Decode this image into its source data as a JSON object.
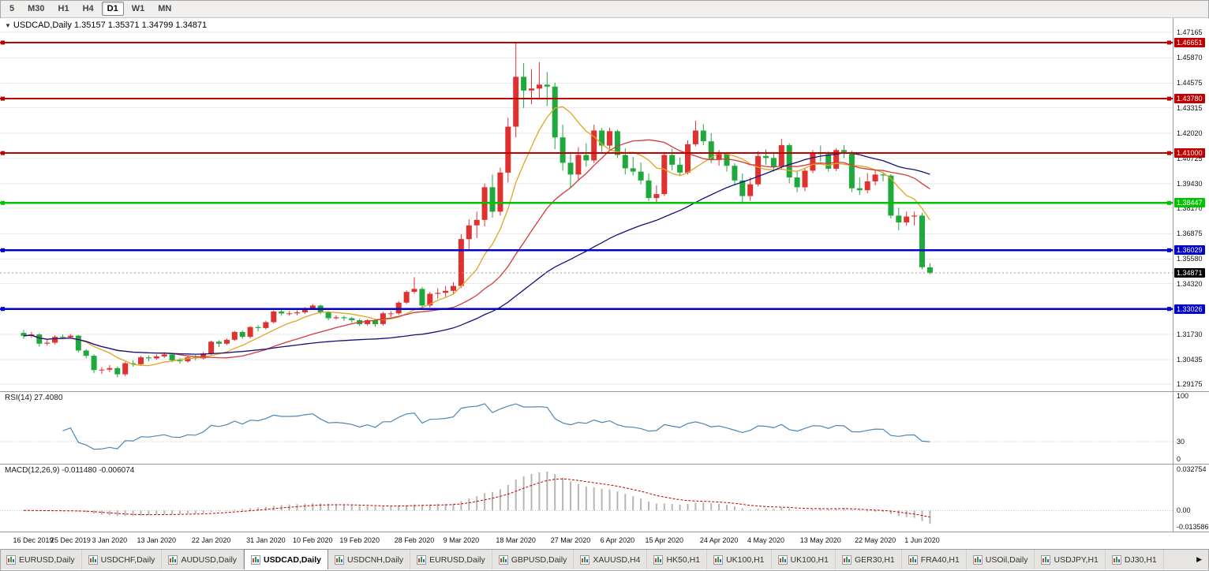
{
  "toolbar": {
    "periods": [
      {
        "label": "5",
        "active": false
      },
      {
        "label": "M30",
        "active": false
      },
      {
        "label": "H1",
        "active": false
      },
      {
        "label": "H4",
        "active": false
      },
      {
        "label": "D1",
        "active": true
      },
      {
        "label": "W1",
        "active": false
      },
      {
        "label": "MN",
        "active": false
      }
    ]
  },
  "chart": {
    "collapse_icon": "▼",
    "symbol_title": "USDCAD,Daily",
    "ohlc_text": "1.35157 1.35371 1.34799 1.34871",
    "y_axis": {
      "max": 1.479,
      "min": 1.2882,
      "ticks": [
        "1.47165",
        "1.45870",
        "1.44575",
        "1.43315",
        "1.42020",
        "1.40725",
        "1.39430",
        "1.38170",
        "1.36875",
        "1.35580",
        "1.34320",
        "1.33025",
        "1.31730",
        "1.30435",
        "1.29175"
      ]
    },
    "levels": [
      {
        "price": 1.46651,
        "label": "1.46651",
        "color": "red"
      },
      {
        "price": 1.4378,
        "label": "1.43780",
        "color": "red"
      },
      {
        "price": 1.41,
        "label": "1.41000",
        "color": "red"
      },
      {
        "price": 1.38447,
        "label": "1.38447",
        "color": "green"
      },
      {
        "price": 1.36029,
        "label": "1.36029",
        "color": "blue"
      },
      {
        "price": 1.33026,
        "label": "1.33026",
        "color": "blue"
      }
    ],
    "current_price": {
      "value": 1.34871,
      "label": "1.34871"
    },
    "colors": {
      "up": "#e03131",
      "down": "#1fa93c",
      "red": "#c00000",
      "green": "#00c400",
      "blue": "#0000cc",
      "ma_fast": "#dfa422",
      "ma_mid": "#d23b3b",
      "ma_slow": "#12127e",
      "grid": "#e9e9e9",
      "current": "#999999",
      "black_badge": "#000000"
    },
    "ma_periods": {
      "fast": 8,
      "mid": 20,
      "slow": 45
    },
    "date_ticks": [
      {
        "label": "16 Dec 2019",
        "i": 1
      },
      {
        "label": "25 Dec 2019",
        "i": 7
      },
      {
        "label": "3 Jan 2020",
        "i": 12
      },
      {
        "label": "13 Jan 2020",
        "i": 18
      },
      {
        "label": "22 Jan 2020",
        "i": 25
      },
      {
        "label": "31 Jan 2020",
        "i": 32
      },
      {
        "label": "10 Feb 2020",
        "i": 38
      },
      {
        "label": "19 Feb 2020",
        "i": 44
      },
      {
        "label": "28 Feb 2020",
        "i": 51
      },
      {
        "label": "9 Mar 2020",
        "i": 57
      },
      {
        "label": "18 Mar 2020",
        "i": 64
      },
      {
        "label": "27 Mar 2020",
        "i": 71
      },
      {
        "label": "6 Apr 2020",
        "i": 77
      },
      {
        "label": "15 Apr 2020",
        "i": 83
      },
      {
        "label": "24 Apr 2020",
        "i": 90
      },
      {
        "label": "4 May 2020",
        "i": 96
      },
      {
        "label": "13 May 2020",
        "i": 103
      },
      {
        "label": "22 May 2020",
        "i": 110
      },
      {
        "label": "1 Jun 2020",
        "i": 116
      }
    ],
    "candles": [
      [
        1.318,
        1.3195,
        1.315,
        1.3165
      ],
      [
        1.3165,
        1.3185,
        1.3155,
        1.3172
      ],
      [
        1.3172,
        1.3178,
        1.311,
        1.3125
      ],
      [
        1.3125,
        1.3145,
        1.3115,
        1.313
      ],
      [
        1.313,
        1.3168,
        1.3122,
        1.316
      ],
      [
        1.316,
        1.3172,
        1.3148,
        1.3158
      ],
      [
        1.3158,
        1.3175,
        1.315,
        1.3166
      ],
      [
        1.3166,
        1.317,
        1.308,
        1.309
      ],
      [
        1.309,
        1.3098,
        1.305,
        1.3063
      ],
      [
        1.3063,
        1.307,
        1.2975,
        1.299
      ],
      [
        1.299,
        1.3005,
        1.297,
        1.2992
      ],
      [
        1.2992,
        1.3015,
        1.298,
        1.3
      ],
      [
        1.3,
        1.3008,
        1.2952,
        1.2968
      ],
      [
        1.2968,
        1.3032,
        1.296,
        1.3025
      ],
      [
        1.3025,
        1.304,
        1.3008,
        1.302
      ],
      [
        1.302,
        1.3062,
        1.3012,
        1.3055
      ],
      [
        1.3055,
        1.3065,
        1.3035,
        1.305
      ],
      [
        1.305,
        1.307,
        1.3042,
        1.306
      ],
      [
        1.306,
        1.3082,
        1.3052,
        1.307
      ],
      [
        1.307,
        1.3078,
        1.303,
        1.304
      ],
      [
        1.304,
        1.3052,
        1.3022,
        1.3035
      ],
      [
        1.3035,
        1.3062,
        1.3028,
        1.3055
      ],
      [
        1.3055,
        1.3068,
        1.304,
        1.305
      ],
      [
        1.305,
        1.3082,
        1.3044,
        1.3075
      ],
      [
        1.3075,
        1.314,
        1.3068,
        1.3135
      ],
      [
        1.3135,
        1.3142,
        1.3108,
        1.3125
      ],
      [
        1.3125,
        1.3152,
        1.3118,
        1.3145
      ],
      [
        1.3145,
        1.319,
        1.3138,
        1.3185
      ],
      [
        1.3185,
        1.3192,
        1.315,
        1.316
      ],
      [
        1.316,
        1.3215,
        1.3152,
        1.321
      ],
      [
        1.321,
        1.322,
        1.3188,
        1.3205
      ],
      [
        1.3205,
        1.3242,
        1.3198,
        1.3235
      ],
      [
        1.3235,
        1.3295,
        1.3228,
        1.329
      ],
      [
        1.329,
        1.3298,
        1.3268,
        1.328
      ],
      [
        1.328,
        1.3292,
        1.3268,
        1.328
      ],
      [
        1.328,
        1.3295,
        1.327,
        1.3285
      ],
      [
        1.3285,
        1.3312,
        1.3278,
        1.3305
      ],
      [
        1.3305,
        1.3328,
        1.3298,
        1.332
      ],
      [
        1.332,
        1.3325,
        1.3275,
        1.3285
      ],
      [
        1.3285,
        1.3292,
        1.3245,
        1.3255
      ],
      [
        1.3255,
        1.327,
        1.3248,
        1.326
      ],
      [
        1.326,
        1.3268,
        1.3242,
        1.3255
      ],
      [
        1.3255,
        1.3262,
        1.3232,
        1.3245
      ],
      [
        1.3245,
        1.3252,
        1.3215,
        1.3225
      ],
      [
        1.3225,
        1.325,
        1.3218,
        1.3245
      ],
      [
        1.3245,
        1.3252,
        1.3212,
        1.3225
      ],
      [
        1.3225,
        1.3288,
        1.3218,
        1.328
      ],
      [
        1.328,
        1.3292,
        1.3262,
        1.328
      ],
      [
        1.328,
        1.3342,
        1.3272,
        1.3335
      ],
      [
        1.3335,
        1.3398,
        1.3328,
        1.339
      ],
      [
        1.339,
        1.3465,
        1.338,
        1.3405
      ],
      [
        1.3405,
        1.3415,
        1.3305,
        1.332
      ],
      [
        1.332,
        1.339,
        1.331,
        1.338
      ],
      [
        1.338,
        1.3408,
        1.3355,
        1.3385
      ],
      [
        1.3385,
        1.342,
        1.3365,
        1.3395
      ],
      [
        1.3395,
        1.344,
        1.338,
        1.342
      ],
      [
        1.342,
        1.3685,
        1.341,
        1.366
      ],
      [
        1.366,
        1.376,
        1.36,
        1.373
      ],
      [
        1.373,
        1.38,
        1.3665,
        1.3758
      ],
      [
        1.3758,
        1.3945,
        1.3725,
        1.3925
      ],
      [
        1.3925,
        1.399,
        1.377,
        1.38
      ],
      [
        1.38,
        1.4025,
        1.378,
        1.4
      ],
      [
        1.4,
        1.428,
        1.395,
        1.4235
      ],
      [
        1.4235,
        1.4668,
        1.418,
        1.449
      ],
      [
        1.449,
        1.456,
        1.433,
        1.442
      ],
      [
        1.442,
        1.453,
        1.435,
        1.443
      ],
      [
        1.443,
        1.4565,
        1.438,
        1.445
      ],
      [
        1.445,
        1.4515,
        1.434,
        1.444
      ],
      [
        1.444,
        1.446,
        1.412,
        1.418
      ],
      [
        1.418,
        1.4245,
        1.401,
        1.405
      ],
      [
        1.405,
        1.4105,
        1.392,
        1.399
      ],
      [
        1.399,
        1.413,
        1.396,
        1.409
      ],
      [
        1.409,
        1.415,
        1.403,
        1.4062
      ],
      [
        1.4062,
        1.4245,
        1.4048,
        1.4215
      ],
      [
        1.4215,
        1.4228,
        1.4105,
        1.4138
      ],
      [
        1.4138,
        1.423,
        1.4122,
        1.4212
      ],
      [
        1.4212,
        1.422,
        1.4075,
        1.409
      ],
      [
        1.409,
        1.4125,
        1.399,
        1.4022
      ],
      [
        1.4022,
        1.408,
        1.3985,
        1.4005
      ],
      [
        1.4005,
        1.4052,
        1.394,
        1.396
      ],
      [
        1.396,
        1.3995,
        1.3855,
        1.387
      ],
      [
        1.387,
        1.3935,
        1.385,
        1.389
      ],
      [
        1.389,
        1.4105,
        1.388,
        1.409
      ],
      [
        1.409,
        1.4122,
        1.4012,
        1.404
      ],
      [
        1.404,
        1.4078,
        1.3985,
        1.4
      ],
      [
        1.4,
        1.4165,
        1.399,
        1.4145
      ],
      [
        1.4145,
        1.4265,
        1.4135,
        1.4215
      ],
      [
        1.4215,
        1.4248,
        1.414,
        1.416
      ],
      [
        1.416,
        1.4202,
        1.4048,
        1.4065
      ],
      [
        1.4065,
        1.4115,
        1.4035,
        1.4095
      ],
      [
        1.4095,
        1.4105,
        1.4005,
        1.4035
      ],
      [
        1.4035,
        1.4048,
        1.3935,
        1.396
      ],
      [
        1.396,
        1.3995,
        1.385,
        1.388
      ],
      [
        1.388,
        1.3975,
        1.3855,
        1.394
      ],
      [
        1.394,
        1.411,
        1.393,
        1.4085
      ],
      [
        1.4085,
        1.412,
        1.404,
        1.4075
      ],
      [
        1.4075,
        1.4105,
        1.4005,
        1.403
      ],
      [
        1.403,
        1.4172,
        1.4015,
        1.414
      ],
      [
        1.414,
        1.415,
        1.3945,
        1.3975
      ],
      [
        1.3975,
        1.401,
        1.39,
        1.3925
      ],
      [
        1.3925,
        1.4025,
        1.3905,
        1.401
      ],
      [
        1.401,
        1.4115,
        1.3998,
        1.41
      ],
      [
        1.41,
        1.4138,
        1.4055,
        1.4095
      ],
      [
        1.4095,
        1.411,
        1.4005,
        1.402
      ],
      [
        1.402,
        1.4125,
        1.4008,
        1.4115
      ],
      [
        1.4115,
        1.414,
        1.4075,
        1.4105
      ],
      [
        1.4105,
        1.4112,
        1.39,
        1.392
      ],
      [
        1.392,
        1.3975,
        1.3885,
        1.391
      ],
      [
        1.391,
        1.3998,
        1.3895,
        1.3955
      ],
      [
        1.3955,
        1.4012,
        1.3935,
        1.399
      ],
      [
        1.399,
        1.4005,
        1.3955,
        1.3985
      ],
      [
        1.3985,
        1.3992,
        1.3765,
        1.378
      ],
      [
        1.378,
        1.382,
        1.3705,
        1.3745
      ],
      [
        1.3745,
        1.38,
        1.3728,
        1.3775
      ],
      [
        1.3775,
        1.38,
        1.373,
        1.378
      ],
      [
        1.378,
        1.3795,
        1.3505,
        1.3516
      ],
      [
        1.35157,
        1.35371,
        1.34799,
        1.34871
      ]
    ]
  },
  "rsi": {
    "label_text": "RSI(14)",
    "value": "27.4080",
    "period": 14,
    "axis_labels": [
      "100",
      "30",
      "0"
    ],
    "line_color": "#4a86b8",
    "level_line": 30
  },
  "macd": {
    "label_text": "MACD(12,26,9)",
    "value1": "-0.011480",
    "value2": "-0.006074",
    "fast": 12,
    "slow": 26,
    "signal": 9,
    "axis": {
      "max": 0.032754,
      "min": -0.013586,
      "labels": [
        "0.032754",
        "0.00",
        "-0.013586"
      ]
    },
    "hist_color": "#b6b6b6",
    "signal_color": "#c00000"
  },
  "tabbar": {
    "scroll_right_icon": "▶",
    "tabs": [
      {
        "label": "EURUSD,Daily",
        "active": false
      },
      {
        "label": "USDCHF,Daily",
        "active": false
      },
      {
        "label": "AUDUSD,Daily",
        "active": false
      },
      {
        "label": "USDCAD,Daily",
        "active": true
      },
      {
        "label": "USDCNH,Daily",
        "active": false
      },
      {
        "label": "EURUSD,Daily",
        "active": false
      },
      {
        "label": "GBPUSD,Daily",
        "active": false
      },
      {
        "label": "XAUUSD,H4",
        "active": false
      },
      {
        "label": "HK50,H1",
        "active": false
      },
      {
        "label": "UK100,H1",
        "active": false
      },
      {
        "label": "UK100,H1",
        "active": false
      },
      {
        "label": "GER30,H1",
        "active": false
      },
      {
        "label": "FRA40,H1",
        "active": false
      },
      {
        "label": "USOil,Daily",
        "active": false
      },
      {
        "label": "USDJPY,H1",
        "active": false
      },
      {
        "label": "DJ30,H1",
        "active": false
      }
    ]
  }
}
